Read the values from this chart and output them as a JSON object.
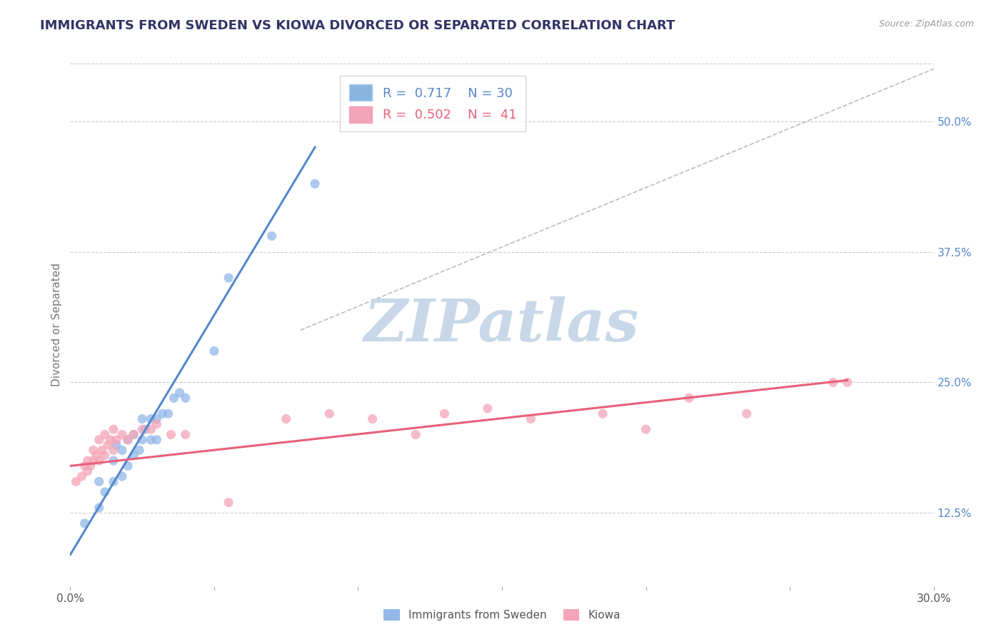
{
  "title": "IMMIGRANTS FROM SWEDEN VS KIOWA DIVORCED OR SEPARATED CORRELATION CHART",
  "source_text": "Source: ZipAtlas.com",
  "ylabel": "Divorced or Separated",
  "xlim": [
    0.0,
    0.3
  ],
  "ylim": [
    0.055,
    0.555
  ],
  "xtick_vals": [
    0.0,
    0.05,
    0.1,
    0.15,
    0.2,
    0.25,
    0.3
  ],
  "xtick_labels_show": [
    "0.0%",
    "",
    "",
    "",
    "",
    "",
    "30.0%"
  ],
  "ytick_vals": [
    0.125,
    0.25,
    0.375,
    0.5
  ],
  "ytick_labels": [
    "12.5%",
    "25.0%",
    "37.5%",
    "50.0%"
  ],
  "grid_color": "#cccccc",
  "background_color": "#ffffff",
  "watermark": "ZIPatlas",
  "watermark_color": "#c8d8e8",
  "title_color": "#333366",
  "title_fontsize": 13,
  "legend_R1": "0.717",
  "legend_N1": "30",
  "legend_R2": "0.502",
  "legend_N2": "41",
  "legend_color1": "#8ab4e0",
  "legend_color2": "#f4a4b8",
  "scatter_color1": "#92b8e8",
  "scatter_color2": "#f4a4b8",
  "line_color1": "#5588cc",
  "line_color2": "#e8607a",
  "ref_line_color": "#bbbbbb",
  "blue_x": [
    0.005,
    0.01,
    0.01,
    0.012,
    0.015,
    0.015,
    0.016,
    0.018,
    0.018,
    0.02,
    0.02,
    0.022,
    0.022,
    0.024,
    0.025,
    0.025,
    0.026,
    0.028,
    0.028,
    0.03,
    0.03,
    0.032,
    0.034,
    0.036,
    0.038,
    0.04,
    0.05,
    0.055,
    0.07,
    0.085
  ],
  "blue_y": [
    0.115,
    0.13,
    0.155,
    0.145,
    0.155,
    0.175,
    0.19,
    0.16,
    0.185,
    0.17,
    0.195,
    0.18,
    0.2,
    0.185,
    0.195,
    0.215,
    0.205,
    0.195,
    0.215,
    0.195,
    0.215,
    0.22,
    0.22,
    0.235,
    0.24,
    0.235,
    0.28,
    0.35,
    0.39,
    0.44
  ],
  "pink_x": [
    0.002,
    0.004,
    0.005,
    0.006,
    0.006,
    0.007,
    0.008,
    0.008,
    0.009,
    0.01,
    0.01,
    0.011,
    0.012,
    0.012,
    0.013,
    0.014,
    0.015,
    0.015,
    0.016,
    0.018,
    0.02,
    0.022,
    0.025,
    0.028,
    0.03,
    0.035,
    0.04,
    0.055,
    0.075,
    0.09,
    0.105,
    0.12,
    0.13,
    0.145,
    0.16,
    0.185,
    0.2,
    0.215,
    0.235,
    0.265,
    0.27
  ],
  "pink_y": [
    0.155,
    0.16,
    0.17,
    0.165,
    0.175,
    0.17,
    0.175,
    0.185,
    0.18,
    0.175,
    0.195,
    0.185,
    0.18,
    0.2,
    0.19,
    0.195,
    0.185,
    0.205,
    0.195,
    0.2,
    0.195,
    0.2,
    0.205,
    0.205,
    0.21,
    0.2,
    0.2,
    0.135,
    0.215,
    0.22,
    0.215,
    0.2,
    0.22,
    0.225,
    0.215,
    0.22,
    0.205,
    0.235,
    0.22,
    0.25,
    0.25
  ],
  "blue_trend_x": [
    0.0,
    0.085
  ],
  "blue_trend_y": [
    0.085,
    0.475
  ],
  "pink_trend_x": [
    0.0,
    0.27
  ],
  "pink_trend_y": [
    0.17,
    0.252
  ],
  "ref_line_x": [
    0.08,
    0.3
  ],
  "ref_line_y": [
    0.3,
    0.55
  ]
}
